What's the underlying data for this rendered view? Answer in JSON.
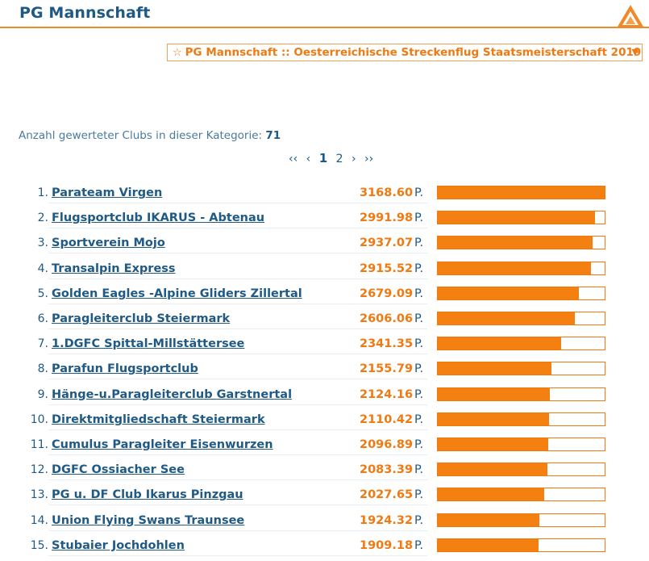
{
  "header": {
    "title": "PG Mannschaft",
    "accent_color": "#f08a28",
    "logo_icon": "triangle-logo-icon"
  },
  "category_select": {
    "star_icon": "☆",
    "selected": "PG Mannschaft :: Oesterreichische Streckenflug Staatsmeisterschaft 2019",
    "caret_icon": "▼"
  },
  "summary": {
    "label": "Anzahl gewerteter Clubs in dieser Kategorie:",
    "count": "71"
  },
  "pagination": {
    "first": "‹‹",
    "prev": "‹",
    "pages": [
      "1",
      "2"
    ],
    "current": "1",
    "next": "›",
    "last": "››"
  },
  "ranking": {
    "unit": "P.",
    "max_points": 3168.6,
    "rows": [
      {
        "rank": "1.",
        "club": "Parateam Virgen",
        "points": "3168.60"
      },
      {
        "rank": "2.",
        "club": "Flugsportclub IKARUS - Abtenau",
        "points": "2991.98"
      },
      {
        "rank": "3.",
        "club": "Sportverein Mojo",
        "points": "2937.07"
      },
      {
        "rank": "4.",
        "club": "Transalpin Express",
        "points": "2915.52"
      },
      {
        "rank": "5.",
        "club": "Golden Eagles -Alpine Gliders Zillertal",
        "points": "2679.09"
      },
      {
        "rank": "6.",
        "club": "Paragleiterclub Steiermark",
        "points": "2606.06"
      },
      {
        "rank": "7.",
        "club": "1.DGFC Spittal-Millstättersee",
        "points": "2341.35"
      },
      {
        "rank": "8.",
        "club": "Parafun Flugsportclub",
        "points": "2155.79"
      },
      {
        "rank": "9.",
        "club": "Hänge-u.Paragleiterclub Garstnertal",
        "points": "2124.16"
      },
      {
        "rank": "10.",
        "club": "Direktmitgliedschaft Steiermark",
        "points": "2110.42"
      },
      {
        "rank": "11.",
        "club": "Cumulus Paragleiter Eisenwurzen",
        "points": "2096.89"
      },
      {
        "rank": "12.",
        "club": "DGFC Ossiacher See",
        "points": "2083.39"
      },
      {
        "rank": "13.",
        "club": "PG u. DF Club Ikarus Pinzgau",
        "points": "2027.65"
      },
      {
        "rank": "14.",
        "club": "Union Flying Swans Traunsee",
        "points": "1924.32"
      },
      {
        "rank": "15.",
        "club": "Stubaier Jochdohlen",
        "points": "1909.18"
      }
    ]
  }
}
